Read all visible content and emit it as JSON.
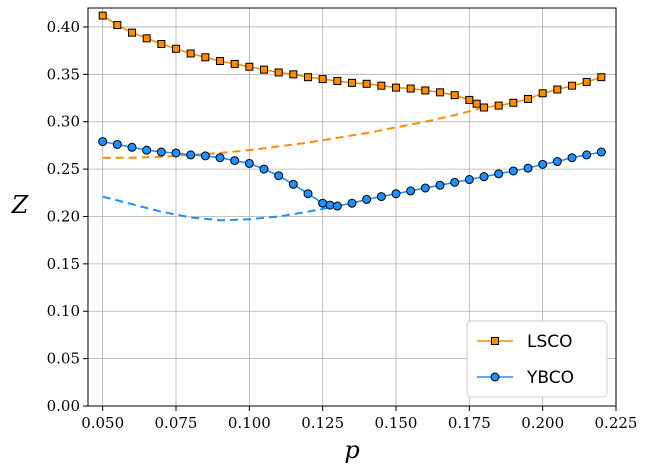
{
  "chart_data": {
    "type": "line",
    "xlabel": "p",
    "ylabel": "Z",
    "xlim": [
      0.045,
      0.225
    ],
    "ylim": [
      0.0,
      0.42
    ],
    "xticks": [
      "0.050",
      "0.075",
      "0.100",
      "0.125",
      "0.150",
      "0.175",
      "0.200",
      "0.225"
    ],
    "yticks": [
      "0.00",
      "0.05",
      "0.10",
      "0.15",
      "0.20",
      "0.25",
      "0.30",
      "0.35",
      "0.40"
    ],
    "grid": true,
    "legend_position": "bottom-right",
    "series": [
      {
        "name": "LSCO",
        "color": "#ff8c00",
        "marker": "square",
        "x": [
          0.05,
          0.055,
          0.06,
          0.065,
          0.07,
          0.075,
          0.08,
          0.085,
          0.09,
          0.095,
          0.1,
          0.105,
          0.11,
          0.115,
          0.12,
          0.125,
          0.13,
          0.135,
          0.14,
          0.145,
          0.15,
          0.155,
          0.16,
          0.165,
          0.17,
          0.175,
          0.1775,
          0.18,
          0.185,
          0.19,
          0.195,
          0.2,
          0.205,
          0.21,
          0.215,
          0.22
        ],
        "values": [
          0.412,
          0.402,
          0.394,
          0.388,
          0.382,
          0.377,
          0.372,
          0.368,
          0.364,
          0.361,
          0.358,
          0.355,
          0.352,
          0.35,
          0.347,
          0.345,
          0.343,
          0.341,
          0.34,
          0.338,
          0.336,
          0.335,
          0.333,
          0.331,
          0.328,
          0.323,
          0.319,
          0.315,
          0.317,
          0.32,
          0.324,
          0.33,
          0.334,
          0.338,
          0.342,
          0.347
        ]
      },
      {
        "name": "YBCO",
        "color": "#1e90ff",
        "marker": "circle",
        "x": [
          0.05,
          0.055,
          0.06,
          0.065,
          0.07,
          0.075,
          0.08,
          0.085,
          0.09,
          0.095,
          0.1,
          0.105,
          0.11,
          0.115,
          0.12,
          0.125,
          0.1275,
          0.13,
          0.135,
          0.14,
          0.145,
          0.15,
          0.155,
          0.16,
          0.165,
          0.17,
          0.175,
          0.18,
          0.185,
          0.19,
          0.195,
          0.2,
          0.205,
          0.21,
          0.215,
          0.22
        ],
        "values": [
          0.279,
          0.276,
          0.273,
          0.27,
          0.268,
          0.267,
          0.265,
          0.264,
          0.262,
          0.259,
          0.256,
          0.25,
          0.243,
          0.234,
          0.224,
          0.214,
          0.212,
          0.211,
          0.214,
          0.218,
          0.221,
          0.224,
          0.227,
          0.23,
          0.233,
          0.236,
          0.239,
          0.242,
          0.245,
          0.248,
          0.251,
          0.255,
          0.258,
          0.262,
          0.265,
          0.268
        ]
      }
    ],
    "dashed_curves": [
      {
        "color": "#ff8c00",
        "x": [
          0.05,
          0.06,
          0.07,
          0.08,
          0.09,
          0.1,
          0.11,
          0.12,
          0.13,
          0.14,
          0.15,
          0.16,
          0.17,
          0.18
        ],
        "values": [
          0.262,
          0.262,
          0.263,
          0.265,
          0.267,
          0.27,
          0.274,
          0.278,
          0.283,
          0.288,
          0.294,
          0.3,
          0.307,
          0.315
        ]
      },
      {
        "color": "#1e90ff",
        "x": [
          0.05,
          0.06,
          0.07,
          0.08,
          0.09,
          0.1,
          0.11,
          0.12,
          0.13
        ],
        "values": [
          0.221,
          0.213,
          0.205,
          0.199,
          0.196,
          0.197,
          0.2,
          0.205,
          0.211
        ]
      }
    ]
  }
}
